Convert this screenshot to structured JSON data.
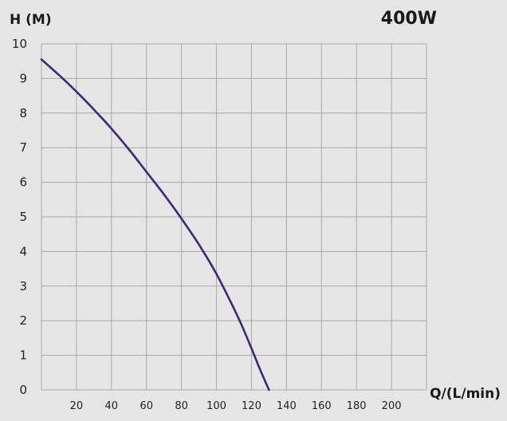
{
  "chart_data": {
    "type": "line",
    "title": "400W",
    "xlabel": "Q/(L/min)",
    "ylabel": "H (M)",
    "xlim": [
      0,
      220
    ],
    "ylim": [
      0,
      10
    ],
    "x_ticks": [
      20,
      40,
      60,
      80,
      100,
      120,
      140,
      160,
      180,
      200
    ],
    "y_ticks": [
      0,
      1,
      2,
      3,
      4,
      5,
      6,
      7,
      8,
      9,
      10
    ],
    "grid": true,
    "line_color": "#3a2a7a",
    "series": [
      {
        "x": [
          0,
          10,
          20,
          30,
          40,
          50,
          60,
          70,
          80,
          90,
          100,
          110,
          115,
          120,
          125,
          130
        ],
        "y": [
          9.55,
          9.1,
          8.62,
          8.1,
          7.55,
          6.95,
          6.3,
          5.65,
          4.95,
          4.2,
          3.35,
          2.35,
          1.8,
          1.2,
          0.58,
          0
        ]
      }
    ]
  }
}
